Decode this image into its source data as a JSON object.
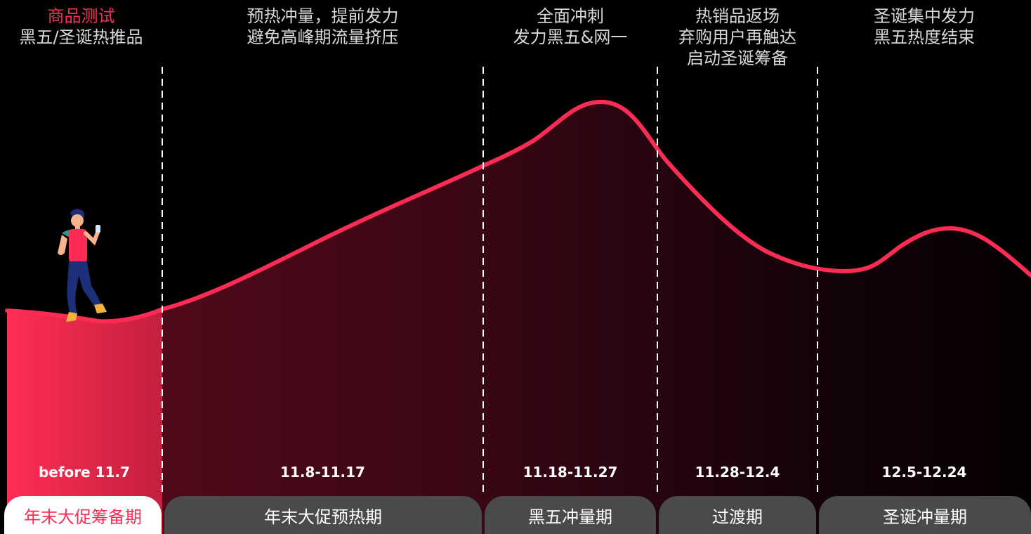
{
  "colors": {
    "accent": "#fe2c55",
    "background": "#000000",
    "pill": "#4a4a4a",
    "active_pill_bg": "#ffffff"
  },
  "phases": [
    {
      "desc": [
        "商品测试",
        "黑五/圣诞热推品"
      ],
      "accent_first": true,
      "date": "before 11.7",
      "name": "年末大促筹备期",
      "active": true
    },
    {
      "desc": [
        "预热冲量，提前发力",
        "避免高峰期流量挤压"
      ],
      "accent_first": false,
      "date": "11.8-11.17",
      "name": "年末大促预热期",
      "active": false
    },
    {
      "desc": [
        "全面冲刺",
        "发力黑五&网一"
      ],
      "accent_first": false,
      "date": "11.18-11.27",
      "name": "黑五冲量期",
      "active": false
    },
    {
      "desc": [
        "热销品返场",
        "弃购用户再触达",
        "启动圣诞筹备"
      ],
      "accent_first": false,
      "date": "11.28-12.4",
      "name": "过渡期",
      "active": false
    },
    {
      "desc": [
        "圣诞集中发力",
        "黑五热度结束"
      ],
      "accent_first": false,
      "date": "12.5-12.24",
      "name": "圣诞冲量期",
      "active": false
    }
  ],
  "icons": {
    "figure": "walking-person-with-phone-icon"
  }
}
